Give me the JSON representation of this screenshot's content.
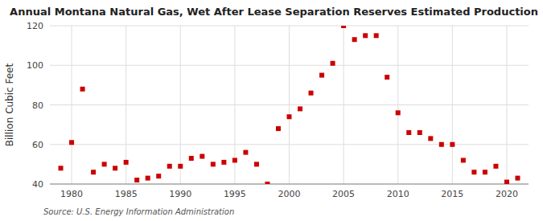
{
  "chart_data": {
    "type": "scatter",
    "title": "Annual Montana Natural Gas, Wet After Lease Separation Reserves Estimated Production",
    "ylabel": "Billion Cubic Feet",
    "annotations": [
      "Source: U.S. Energy Information Administration"
    ],
    "x": [
      1979,
      1980,
      1981,
      1982,
      1983,
      1984,
      1985,
      1986,
      1987,
      1988,
      1989,
      1990,
      1991,
      1992,
      1993,
      1994,
      1995,
      1996,
      1997,
      1998,
      1999,
      2000,
      2001,
      2002,
      2003,
      2004,
      2005,
      2006,
      2007,
      2008,
      2009,
      2010,
      2011,
      2012,
      2013,
      2014,
      2015,
      2016,
      2017,
      2018,
      2019,
      2020,
      2021
    ],
    "values": [
      48,
      61,
      88,
      46,
      50,
      48,
      51,
      42,
      43,
      44,
      49,
      49,
      53,
      54,
      50,
      51,
      52,
      56,
      50,
      40,
      68,
      74,
      78,
      86,
      95,
      101,
      120,
      113,
      115,
      115,
      94,
      76,
      66,
      66,
      63,
      60,
      60,
      52,
      46,
      46,
      49,
      41,
      43
    ],
    "color": "#cc0000",
    "marker": "square",
    "xlim": [
      1978,
      2022
    ],
    "ylim": [
      40,
      120
    ],
    "xticks": [
      1980,
      1985,
      1990,
      1995,
      2000,
      2005,
      2010,
      2015,
      2020
    ],
    "yticks": [
      40,
      60,
      80,
      100,
      120
    ],
    "grid": true
  }
}
